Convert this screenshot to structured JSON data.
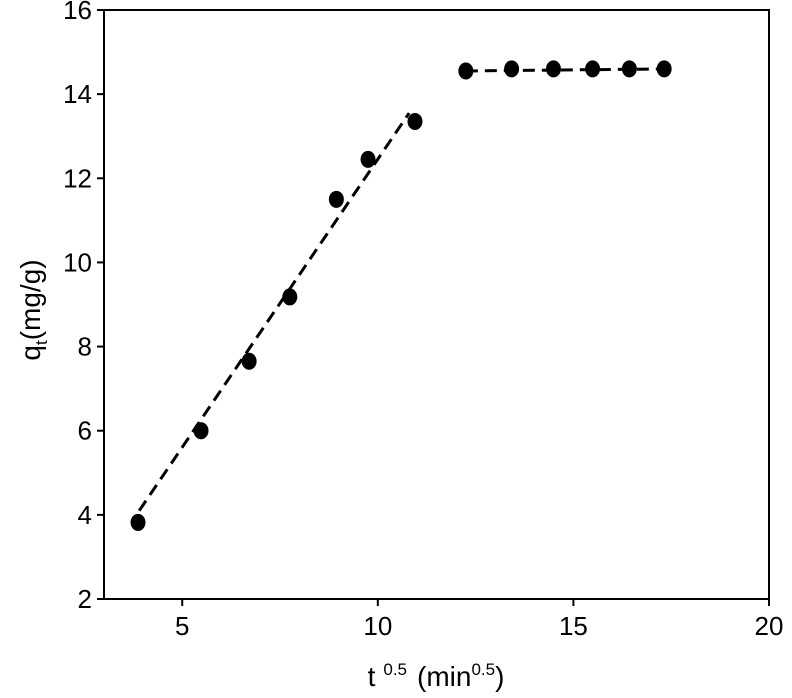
{
  "chart_data": {
    "type": "scatter",
    "title": "",
    "xlabel": {
      "base": "t",
      "exponent": "0.5",
      "unit_open": "(min",
      "unit_exponent": "0.5",
      "unit_close": ")"
    },
    "ylabel": {
      "base": "q",
      "subscript": "t",
      "unit": "(mg/g)"
    },
    "xlim": [
      3,
      20
    ],
    "ylim": [
      2,
      16
    ],
    "xticks": [
      5,
      10,
      15,
      20
    ],
    "yticks": [
      2,
      4,
      6,
      8,
      10,
      12,
      14,
      16
    ],
    "grid": false,
    "legend": "none",
    "series": [
      {
        "points": [
          {
            "x": 3.87,
            "y": 3.82
          },
          {
            "x": 5.48,
            "y": 6.0
          },
          {
            "x": 6.71,
            "y": 7.65
          },
          {
            "x": 7.75,
            "y": 9.18
          },
          {
            "x": 8.94,
            "y": 11.5
          },
          {
            "x": 9.75,
            "y": 12.45
          },
          {
            "x": 10.95,
            "y": 13.35
          },
          {
            "x": 12.25,
            "y": 14.55
          },
          {
            "x": 13.42,
            "y": 14.6
          },
          {
            "x": 14.49,
            "y": 14.6
          },
          {
            "x": 15.49,
            "y": 14.6
          },
          {
            "x": 16.43,
            "y": 14.6
          },
          {
            "x": 17.32,
            "y": 14.6
          }
        ]
      }
    ],
    "fit_lines": [
      {
        "x1": 3.9,
        "y1": 4.1,
        "x2": 10.8,
        "y2": 13.55
      },
      {
        "x1": 12.25,
        "y1": 14.55,
        "x2": 17.32,
        "y2": 14.6
      }
    ],
    "colors": {
      "marker": "#000000",
      "line": "#000000",
      "axis": "#000000"
    }
  }
}
